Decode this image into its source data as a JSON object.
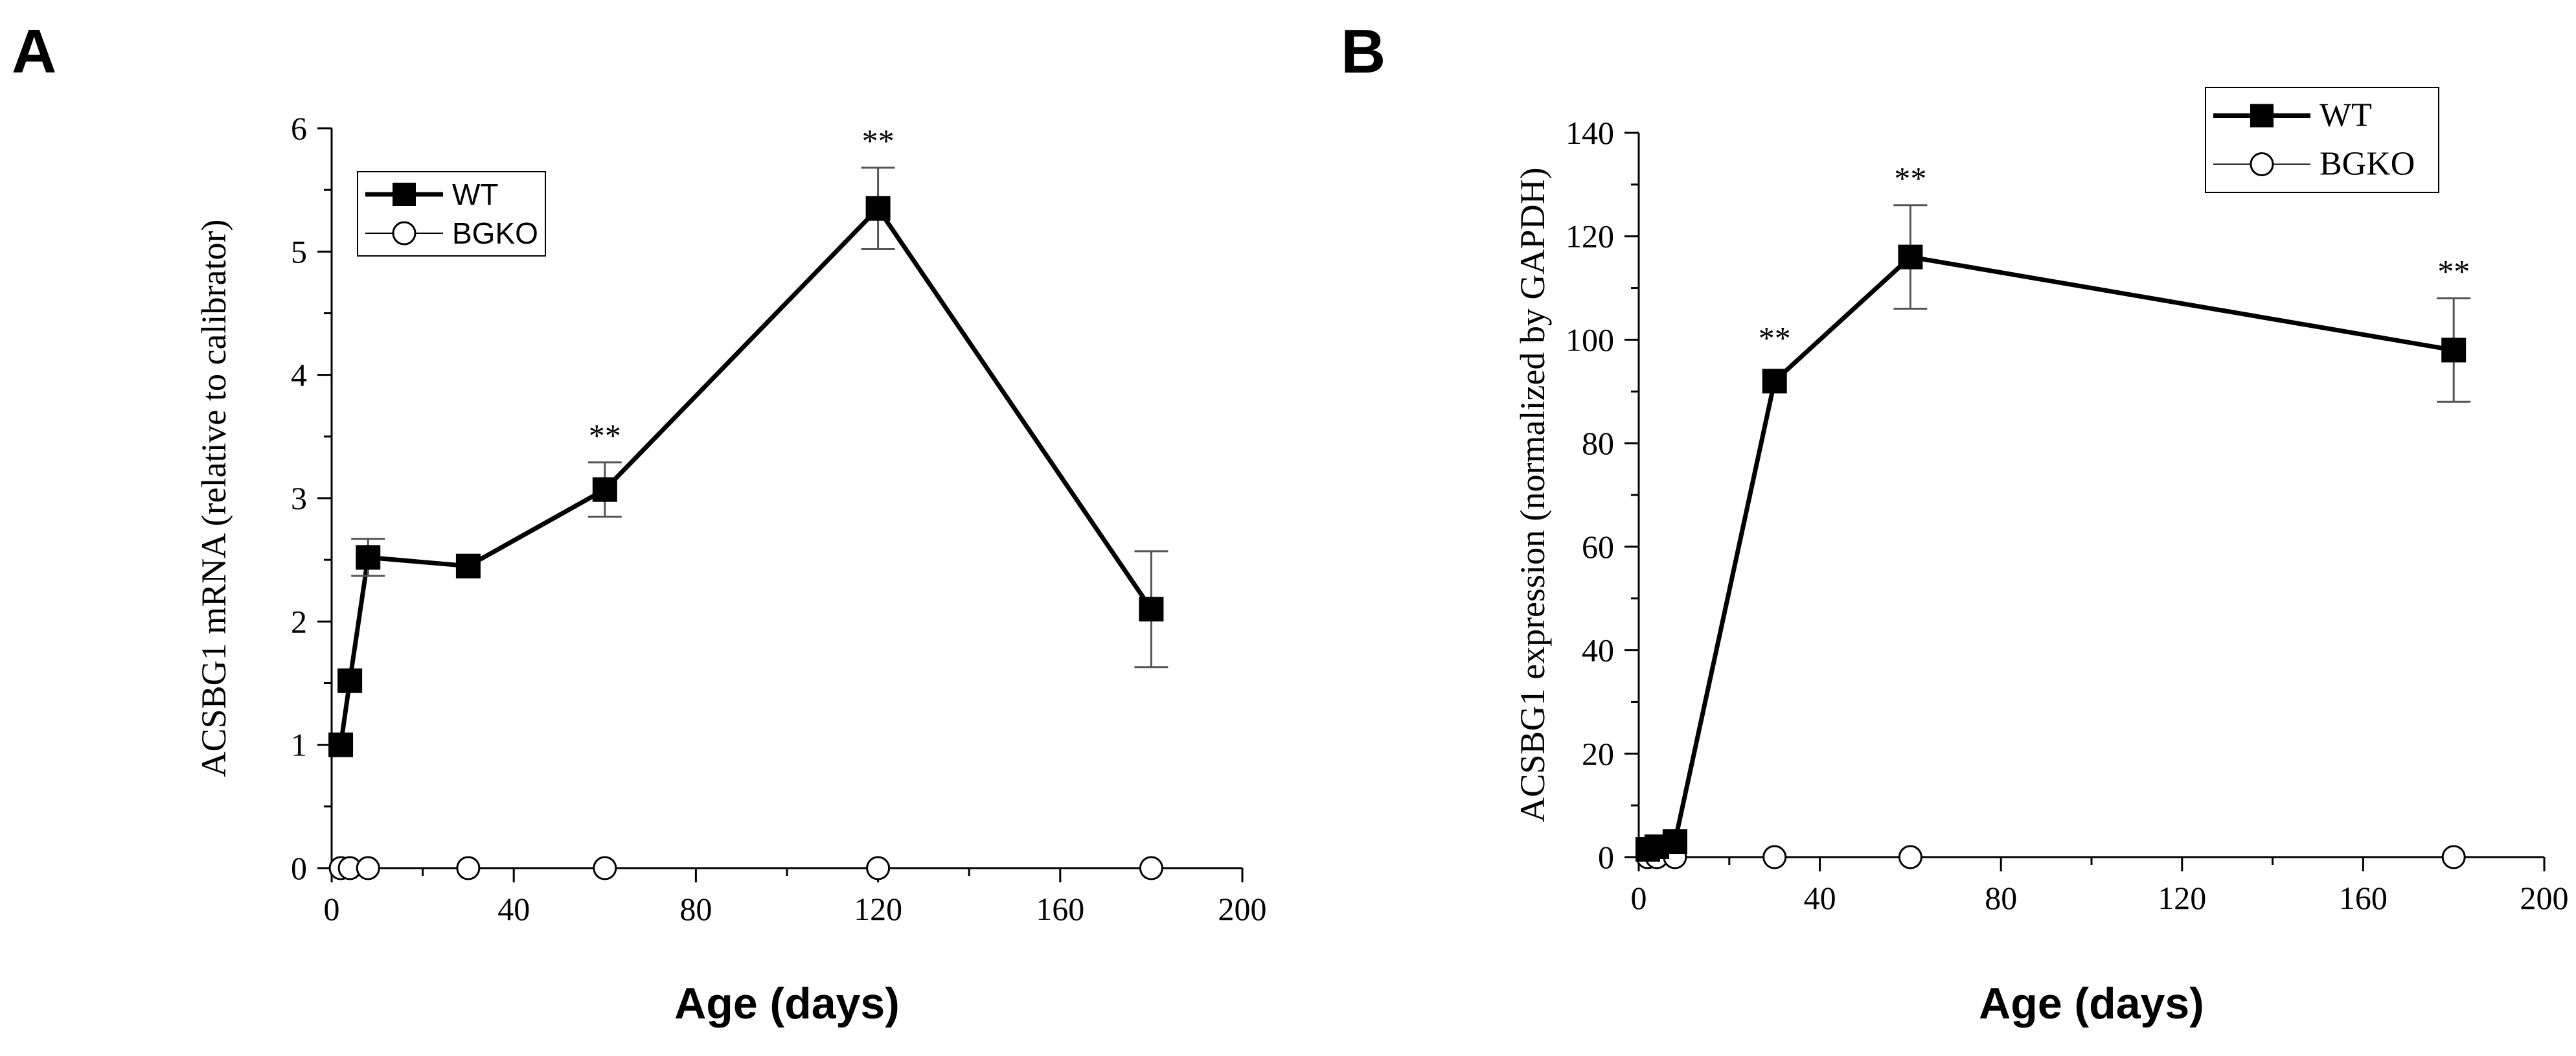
{
  "chart_data": [
    {
      "panel": "A",
      "type": "line",
      "xlabel": "Age (days)",
      "ylabel": "ACSBG1 mRNA (relative to calibrator)",
      "xlim": [
        0,
        200
      ],
      "ylim": [
        0,
        6
      ],
      "xticks": [
        0,
        40,
        80,
        120,
        160,
        200
      ],
      "yticks": [
        0,
        1,
        2,
        3,
        4,
        5,
        6
      ],
      "legend": {
        "position": "top-left",
        "entries": [
          "WT",
          "BGKO"
        ]
      },
      "series": [
        {
          "name": "WT",
          "marker": "filled-square",
          "x": [
            2,
            4,
            8,
            30,
            60,
            120,
            180
          ],
          "y": [
            1.0,
            1.52,
            2.52,
            2.45,
            3.07,
            5.35,
            2.1
          ],
          "error": [
            0,
            0,
            0.15,
            0,
            0.22,
            0.33,
            0.47
          ],
          "significance": [
            "",
            "",
            "",
            "",
            "**",
            "**",
            ""
          ]
        },
        {
          "name": "BGKO",
          "marker": "open-circle",
          "x": [
            2,
            4,
            8,
            30,
            60,
            120,
            180
          ],
          "y": [
            0,
            0,
            0,
            0,
            0,
            0,
            0
          ]
        }
      ]
    },
    {
      "panel": "B",
      "type": "line",
      "xlabel": "Age (days)",
      "ylabel": "ACSBG1 expression (normalized by GAPDH)",
      "xlim": [
        0,
        200
      ],
      "ylim": [
        0,
        140
      ],
      "xticks": [
        0,
        40,
        80,
        120,
        160,
        200
      ],
      "yticks": [
        0,
        20,
        40,
        60,
        80,
        100,
        120,
        140
      ],
      "legend": {
        "position": "top-right",
        "entries": [
          "WT",
          "BGKO"
        ]
      },
      "series": [
        {
          "name": "WT",
          "marker": "filled-square",
          "x": [
            2,
            4,
            8,
            30,
            60,
            180
          ],
          "y": [
            1.5,
            2.0,
            3.0,
            92,
            116,
            98
          ],
          "error": [
            0,
            0,
            0,
            0,
            10,
            10
          ],
          "significance": [
            "",
            "",
            "",
            "**",
            "**",
            "**"
          ]
        },
        {
          "name": "BGKO",
          "marker": "open-circle",
          "x": [
            2,
            4,
            8,
            30,
            60,
            180
          ],
          "y": [
            0,
            0,
            0,
            0,
            0,
            0
          ]
        }
      ]
    }
  ]
}
